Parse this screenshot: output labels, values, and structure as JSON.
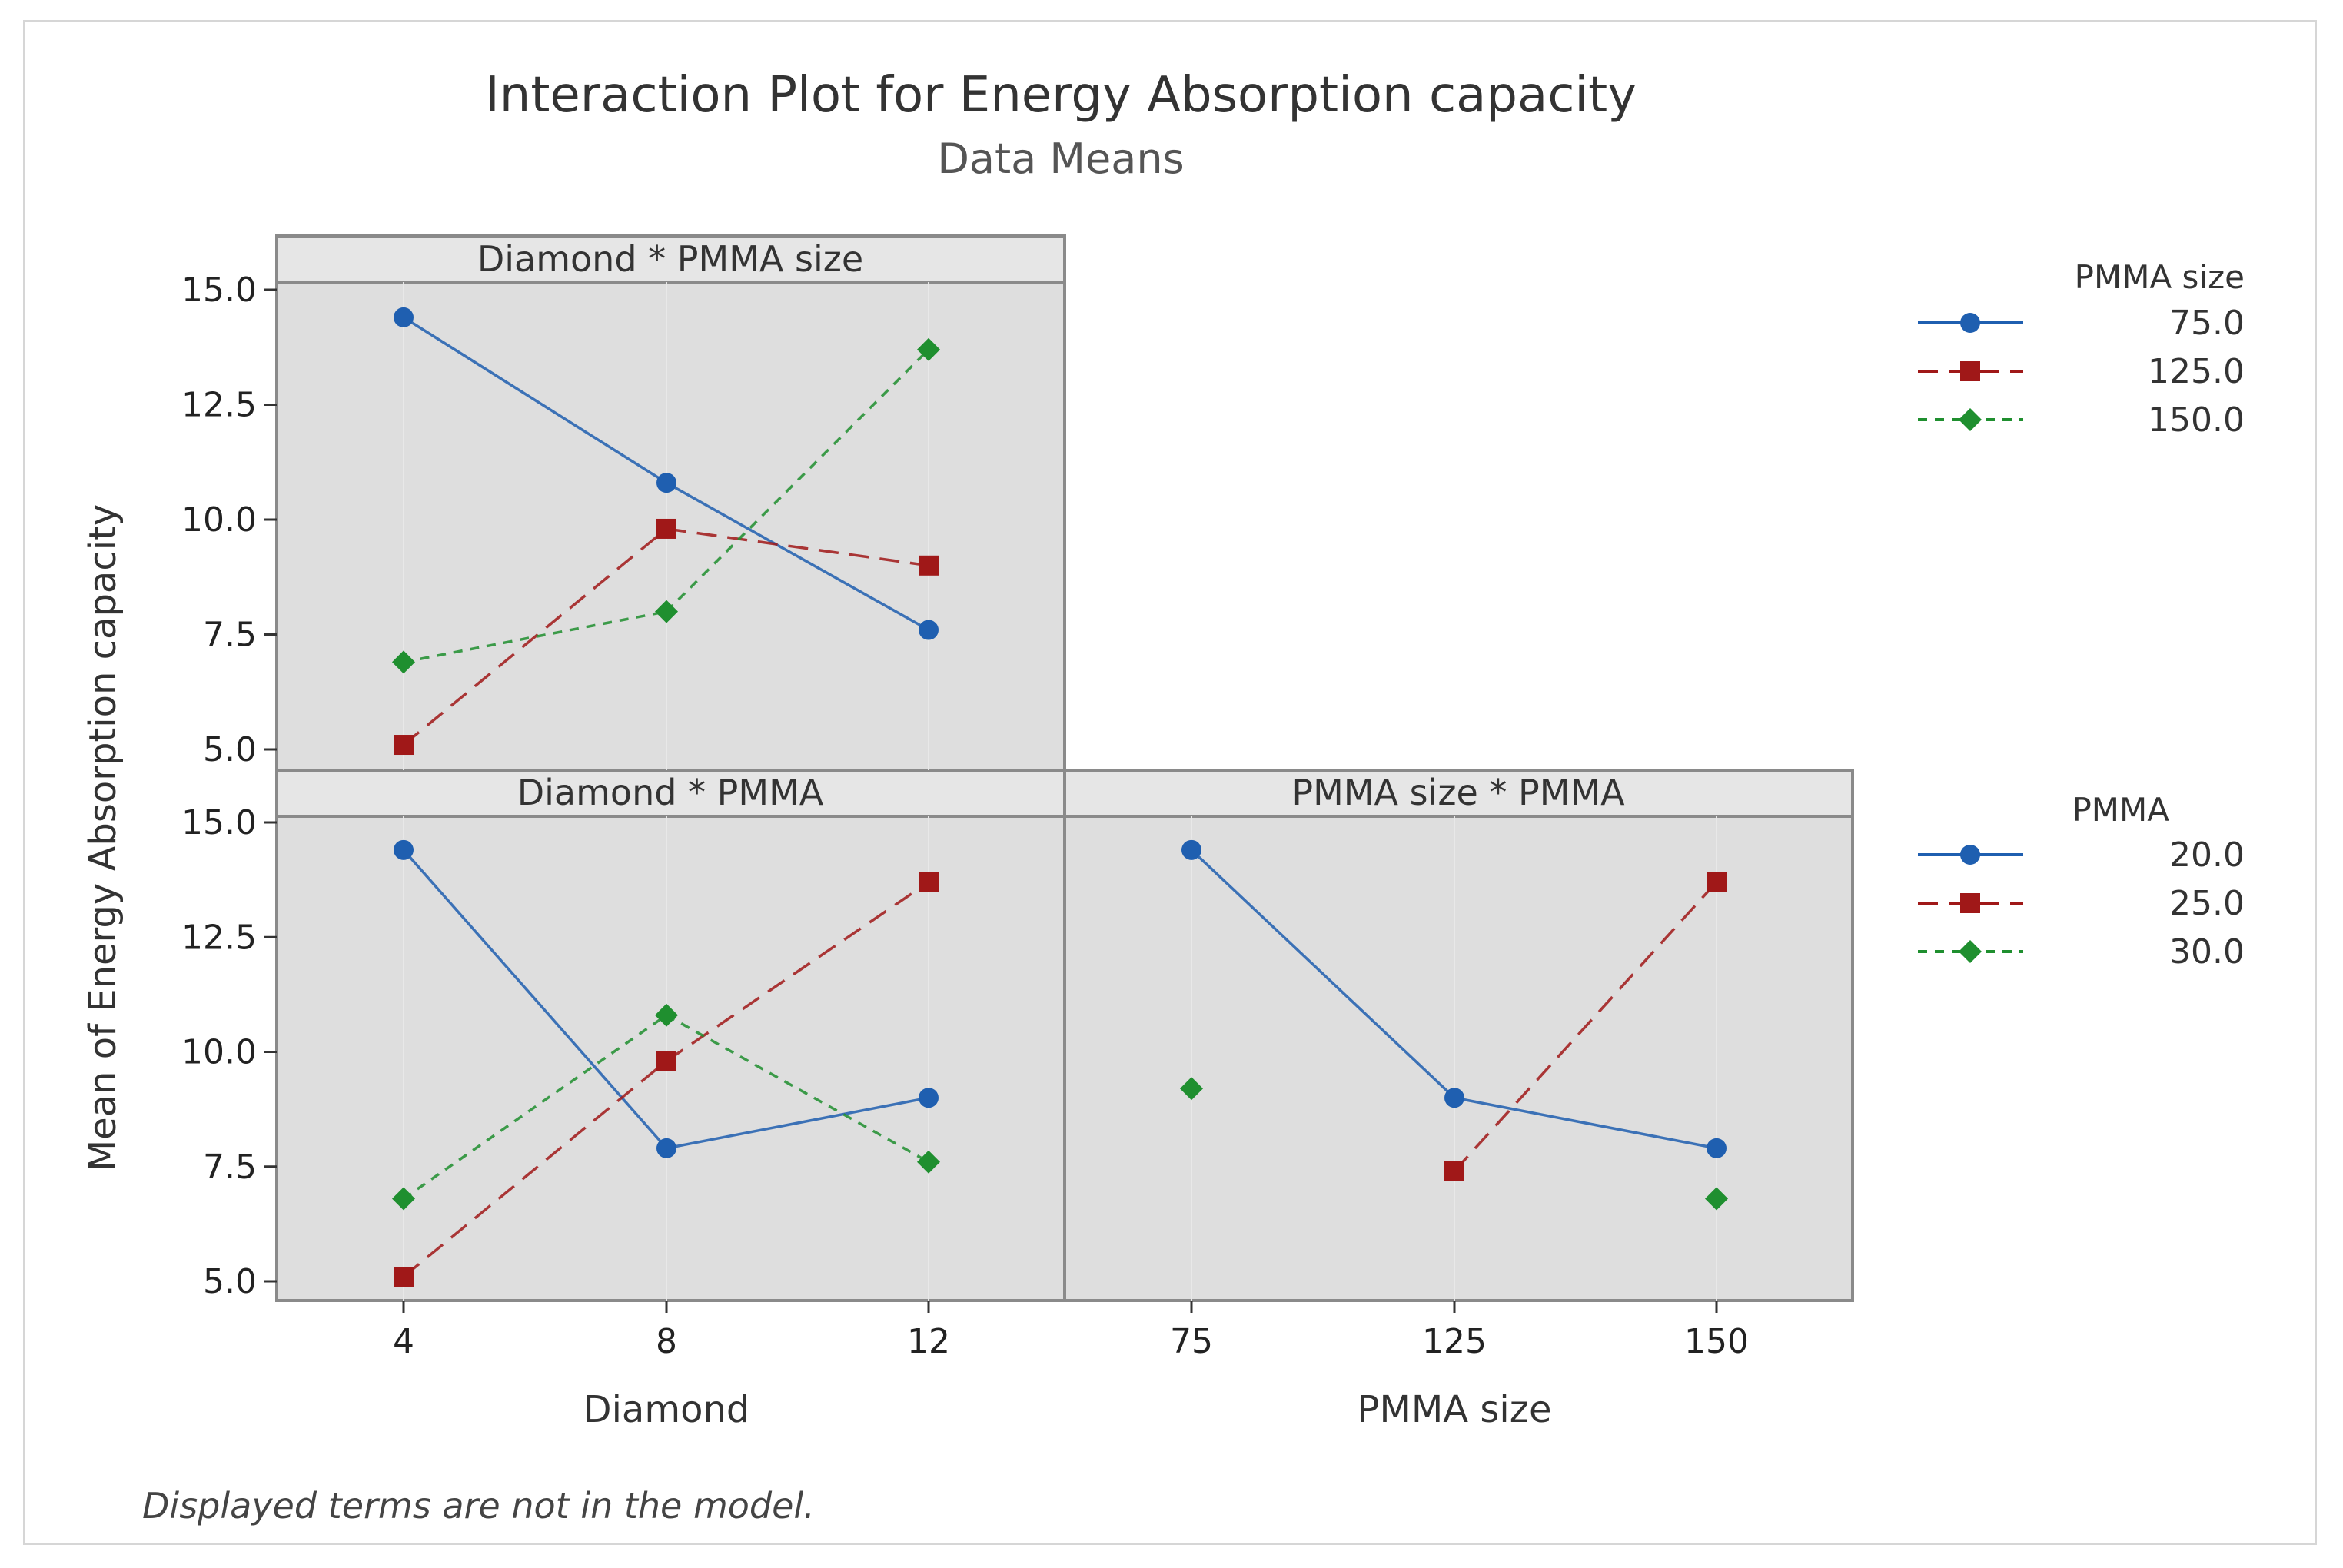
{
  "chart_data": {
    "type": "line",
    "title": "Interaction Plot for Energy Absorption capacity",
    "subtitle": "Data Means",
    "ylabel": "Mean of Energy Absorption capacity",
    "ylim": [
      5.0,
      15.0
    ],
    "yticks": [
      "5.0",
      "7.5",
      "10.0",
      "12.5",
      "15.0"
    ],
    "footnote": "Displayed terms are not in the model.",
    "panels": [
      {
        "id": "diamond-pmma-size",
        "title": "Diamond * PMMA size",
        "categories": [
          "4",
          "8",
          "12"
        ],
        "legend_key": "pmma_size",
        "series": [
          {
            "name": "75.0",
            "values": [
              14.4,
              10.8,
              7.6
            ]
          },
          {
            "name": "125.0",
            "values": [
              5.1,
              9.8,
              9.0
            ]
          },
          {
            "name": "150.0",
            "values": [
              6.9,
              8.0,
              13.7
            ]
          }
        ]
      },
      {
        "id": "diamond-pmma",
        "title": "Diamond * PMMA",
        "categories": [
          "4",
          "8",
          "12"
        ],
        "legend_key": "pmma",
        "series": [
          {
            "name": "20.0",
            "values": [
              14.4,
              7.9,
              9.0
            ]
          },
          {
            "name": "25.0",
            "values": [
              5.1,
              9.8,
              13.7
            ]
          },
          {
            "name": "30.0",
            "values": [
              6.8,
              10.8,
              7.6
            ]
          }
        ]
      },
      {
        "id": "pmma-size-pmma",
        "title": "PMMA size * PMMA",
        "categories": [
          "75",
          "125",
          "150"
        ],
        "legend_key": "pmma",
        "series": [
          {
            "name": "20.0",
            "values": [
              14.4,
              9.0,
              7.9
            ]
          },
          {
            "name": "25.0",
            "values": [
              null,
              7.4,
              13.7
            ]
          },
          {
            "name": "30.0",
            "values": [
              9.2,
              null,
              6.8
            ]
          }
        ]
      }
    ],
    "xlabels": [
      "Diamond",
      "PMMA size"
    ],
    "legends": {
      "pmma_size": {
        "title": "PMMA size",
        "entries": [
          "75.0",
          "125.0",
          "150.0"
        ]
      },
      "pmma": {
        "title": "PMMA",
        "entries": [
          "20.0",
          "25.0",
          "30.0"
        ]
      }
    },
    "series_styles": [
      {
        "color": "#1f5fb0",
        "marker": "circle",
        "dash": "none"
      },
      {
        "color": "#a01818",
        "marker": "square",
        "dash": "long"
      },
      {
        "color": "#1f8f2f",
        "marker": "diamond",
        "dash": "short"
      }
    ],
    "panel_background": "#dedede",
    "panel_header_background": "#e6e6e6"
  }
}
